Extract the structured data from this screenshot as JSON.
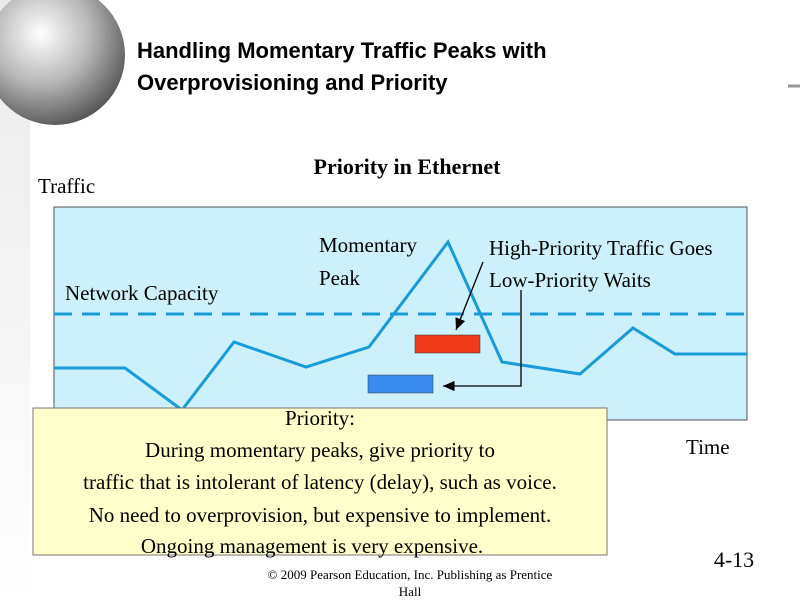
{
  "header": {
    "title_lines": [
      "Handling Momentary Traffic Peaks with",
      "Overprovisioning and Priority"
    ]
  },
  "diagram": {
    "title": "Priority in Ethernet",
    "y_label": "Traffic",
    "x_label": "Time",
    "capacity_label": "Network Capacity",
    "peak_label_lines": [
      "Momentary",
      "Peak"
    ],
    "priority_label_lines": [
      "High-Priority Traffic Goes",
      "Low-Priority Waits"
    ]
  },
  "callout": {
    "lines": [
      "Priority:",
      "During momentary peaks, give priority to",
      "traffic that is intolerant of latency (delay), such as voice.",
      "No need to overprovision, but expensive to implement.",
      "Ongoing management is very expensive."
    ]
  },
  "footer": {
    "page": "4-13",
    "copyright_lines": [
      "© 2009 Pearson Education, Inc.  Publishing as Prentice",
      "Hall"
    ]
  }
}
